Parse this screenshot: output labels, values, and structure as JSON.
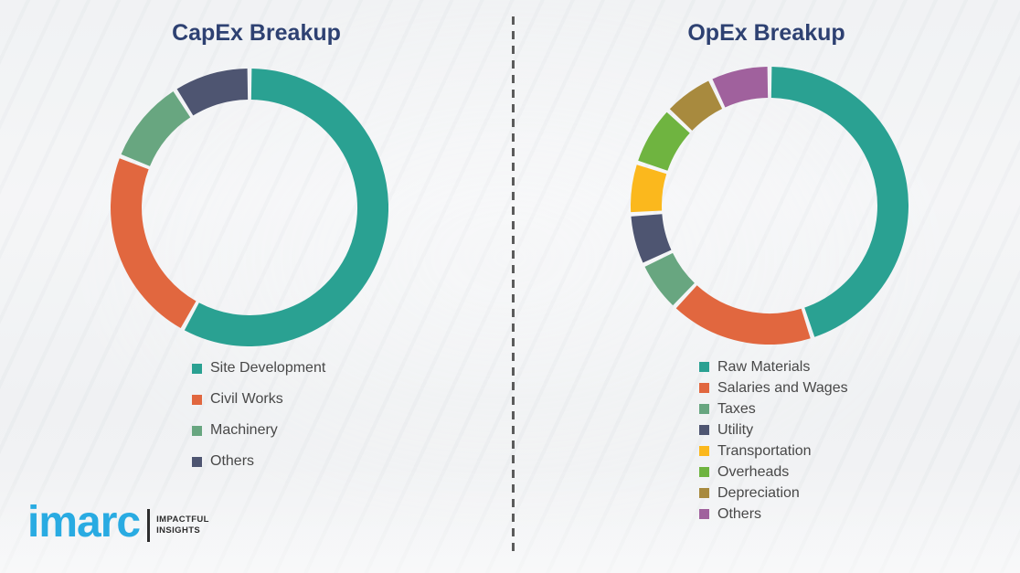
{
  "chart_data": [
    {
      "type": "pie",
      "subtype": "donut",
      "title": "CapEx Breakup",
      "labels": [
        "Site Development",
        "Civil Works",
        "Machinery",
        "Others"
      ],
      "values": [
        58,
        23,
        10,
        9
      ],
      "colors": [
        "#2aa192",
        "#e1673f",
        "#68a680",
        "#4e5571"
      ],
      "start_angle_deg": 0,
      "direction": "clockwise",
      "legend_position": "below-left",
      "ring_thickness_px": 34
    },
    {
      "type": "pie",
      "subtype": "donut",
      "title": "OpEx Breakup",
      "labels": [
        "Raw Materials",
        "Salaries and Wages",
        "Taxes",
        "Utility",
        "Transportation",
        "Overheads",
        "Depreciation",
        "Others"
      ],
      "values": [
        45,
        17,
        6,
        6,
        6,
        7,
        6,
        7
      ],
      "colors": [
        "#2aa192",
        "#e1673f",
        "#68a680",
        "#4e5571",
        "#fbb81d",
        "#6fb440",
        "#a88a3e",
        "#a0619d"
      ],
      "start_angle_deg": 0,
      "direction": "clockwise",
      "legend_position": "below-left",
      "ring_thickness_px": 34
    }
  ],
  "style": {
    "title_color": "#2e4172",
    "legend_text_color": "#484848",
    "divider_color": "#5b5b5b",
    "background_color": "#f1f2f4"
  },
  "logo": {
    "brand": "imarc",
    "tagline_line1": "IMPACTFUL",
    "tagline_line2": "INSIGHTS",
    "brand_color": "#29abe2"
  }
}
